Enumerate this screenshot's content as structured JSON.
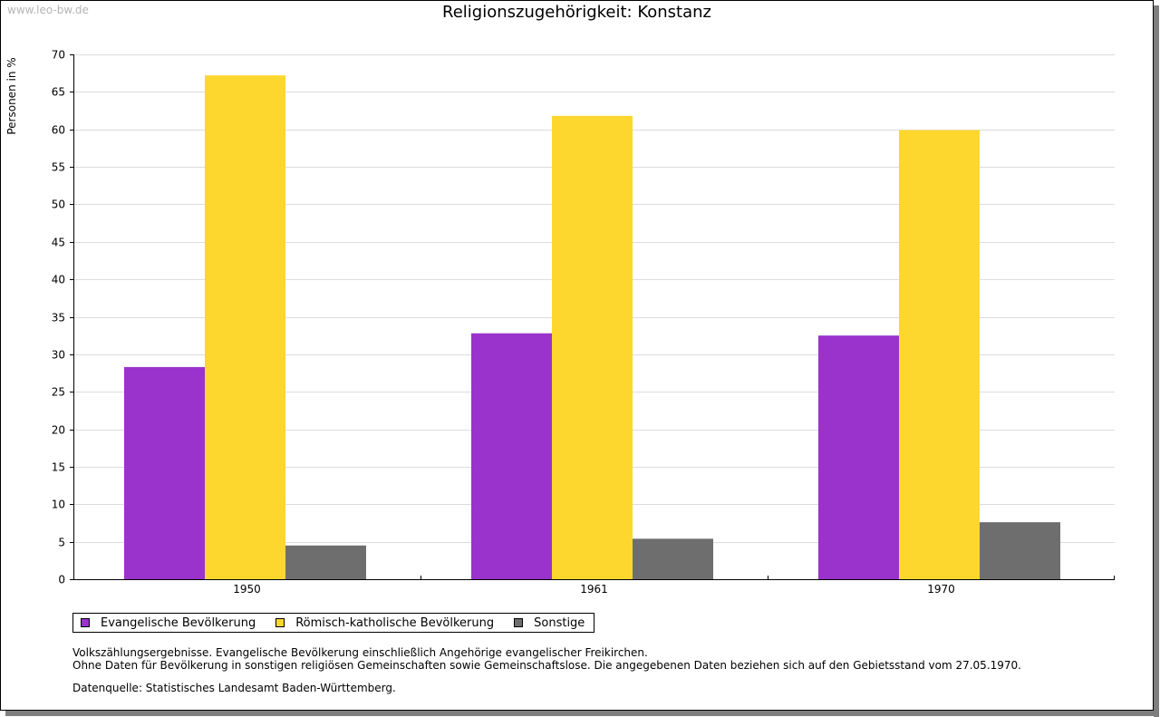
{
  "watermark": "www.leo-bw.de",
  "chart_data": {
    "type": "bar",
    "title": "Religionszugehörigkeit: Konstanz",
    "ylabel": "Personen in %",
    "xlabel": "",
    "categories": [
      "1950",
      "1961",
      "1970"
    ],
    "series": [
      {
        "name": "Evangelische Bevölkerung",
        "color": "#9933cc",
        "values": [
          28.3,
          32.8,
          32.5
        ]
      },
      {
        "name": "Römisch-katholische Bevölkerung",
        "color": "#fdd72d",
        "values": [
          67.2,
          61.8,
          59.9
        ]
      },
      {
        "name": "Sonstige",
        "color": "#6e6e6e",
        "values": [
          4.5,
          5.4,
          7.6
        ]
      }
    ],
    "ylim": [
      0,
      70
    ],
    "yticks": [
      0,
      5,
      10,
      15,
      20,
      25,
      30,
      35,
      40,
      45,
      50,
      55,
      60,
      65,
      70
    ],
    "grid": true,
    "legend_position": "bottom-left"
  },
  "notes": {
    "line1": "Volkszählungsergebnisse. Evangelische Bevölkerung einschließlich Angehörige evangelischer Freikirchen.",
    "line2": "Ohne Daten für Bevölkerung in sonstigen religiösen Gemeinschaften sowie Gemeinschaftslose. Die angegebenen Daten beziehen sich auf den Gebietsstand vom 27.05.1970."
  },
  "source": "Datenquelle: Statistisches Landesamt Baden-Württemberg."
}
